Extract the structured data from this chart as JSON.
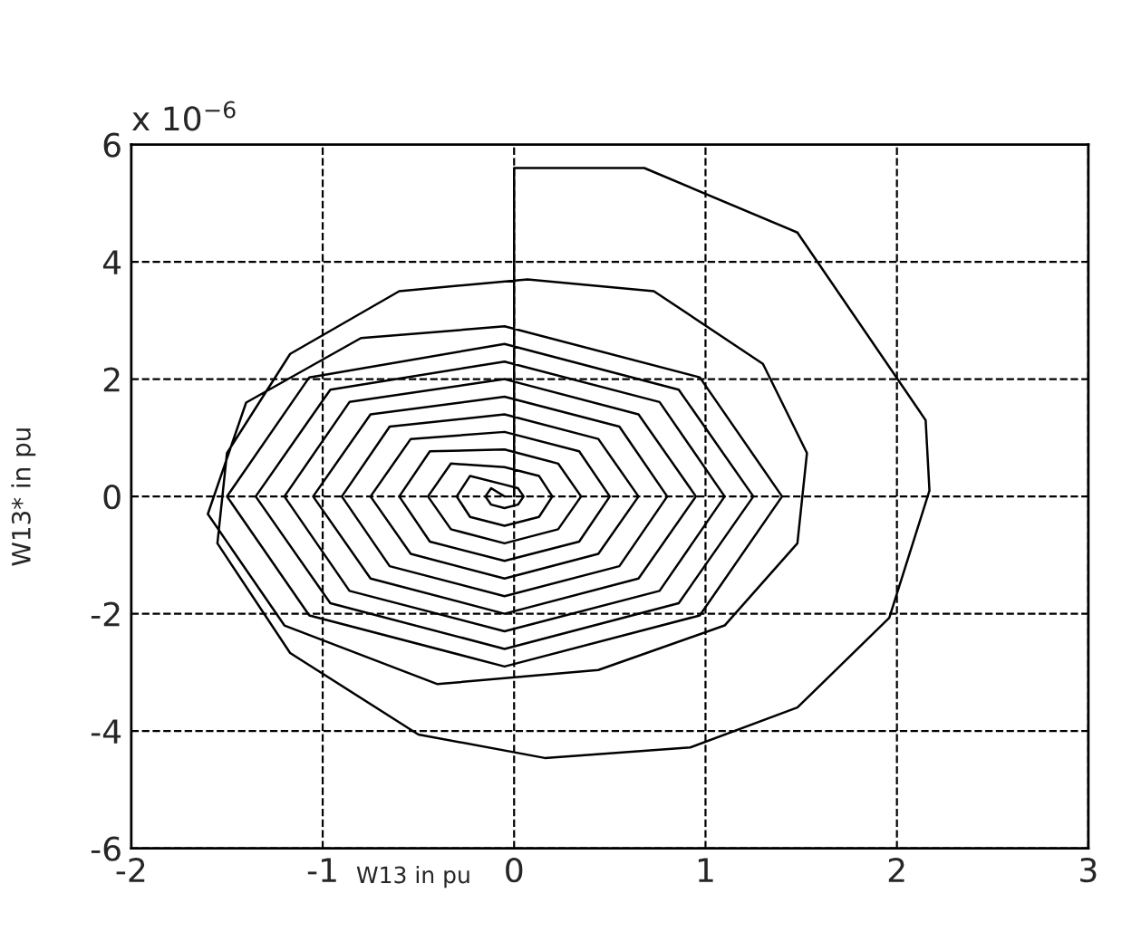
{
  "chart_data": {
    "type": "line",
    "xlabel": "W13 in pu",
    "ylabel": "W13* in pu",
    "annotations": [
      "x 10$^{−6}$"
    ],
    "xlim": [
      -2,
      3
    ],
    "xticks": [
      -2,
      -1,
      0,
      1,
      2,
      3
    ],
    "ylim": [
      -6,
      6
    ],
    "yticks": [
      -6,
      -4,
      -2,
      0,
      2,
      4,
      6
    ],
    "grid": true,
    "line_style": "solid",
    "series": [
      {
        "color": "#000000",
        "x": [
          0,
          0,
          0.68,
          1.48,
          2.15,
          2.17,
          1.96,
          1.48,
          0.92,
          0.16,
          -0.5,
          -1.17,
          -1.55,
          -1.5,
          -1.17,
          -0.6,
          0.07,
          0.73,
          1.3,
          1.53,
          1.48,
          1.1,
          0.44,
          -0.4,
          -1.2,
          -1.6,
          -1.4,
          -0.8,
          -0.05,
          0.97,
          1.4,
          0.97,
          -0.05,
          -1.07,
          -1.5,
          -1.07,
          -0.05,
          0.86,
          1.25,
          0.86,
          -0.05,
          -0.96,
          -1.35,
          -0.96,
          -0.05,
          0.76,
          1.1,
          0.76,
          -0.05,
          -0.86,
          -1.2,
          -0.86,
          -0.05,
          0.65,
          0.95,
          0.65,
          -0.05,
          -0.75,
          -1.05,
          -0.75,
          -0.05,
          0.55,
          0.8,
          0.55,
          -0.05,
          -0.65,
          -0.9,
          -0.65,
          -0.05,
          0.44,
          0.65,
          0.44,
          -0.05,
          -0.54,
          -0.75,
          -0.54,
          -0.05,
          0.34,
          0.5,
          0.34,
          -0.05,
          -0.44,
          -0.6,
          -0.44,
          -0.05,
          0.23,
          0.35,
          0.23,
          -0.05,
          -0.33,
          -0.45,
          -0.33,
          -0.05,
          0.13,
          0.2,
          0.13,
          -0.05,
          -0.23,
          -0.3,
          -0.23,
          -0.05,
          0.02,
          0.05,
          0.02,
          -0.05,
          -0.12,
          -0.15,
          -0.12,
          -0.05
        ],
        "values": [
          0,
          5.6,
          5.6,
          4.5,
          1.3,
          0.1,
          -2.07,
          -3.6,
          -4.28,
          -4.46,
          -4.06,
          -2.67,
          -0.8,
          0.74,
          2.43,
          3.5,
          3.7,
          3.5,
          2.26,
          0.74,
          -0.8,
          -2.2,
          -2.96,
          -3.2,
          -2.2,
          -0.3,
          1.6,
          2.7,
          2.9,
          2.03,
          0,
          -2.03,
          -2.9,
          -2.03,
          0,
          2.03,
          2.6,
          1.82,
          0,
          -1.82,
          -2.6,
          -1.82,
          0,
          1.82,
          2.3,
          1.61,
          0,
          -1.61,
          -2.3,
          -1.61,
          0,
          1.61,
          2.0,
          1.4,
          0,
          -1.4,
          -2.0,
          -1.4,
          0,
          1.4,
          1.7,
          1.19,
          0,
          -1.19,
          -1.7,
          -1.19,
          0,
          1.19,
          1.4,
          0.98,
          0,
          -0.98,
          -1.4,
          -0.98,
          0,
          0.98,
          1.1,
          0.77,
          0,
          -0.77,
          -1.1,
          -0.77,
          0,
          0.77,
          0.8,
          0.56,
          0,
          -0.56,
          -0.8,
          -0.56,
          0,
          0.56,
          0.5,
          0.35,
          0,
          -0.35,
          -0.5,
          -0.35,
          0,
          0.35,
          0.2,
          0.14,
          0,
          -0.14,
          -0.2,
          -0.14,
          0,
          0.14,
          0
        ]
      }
    ]
  }
}
